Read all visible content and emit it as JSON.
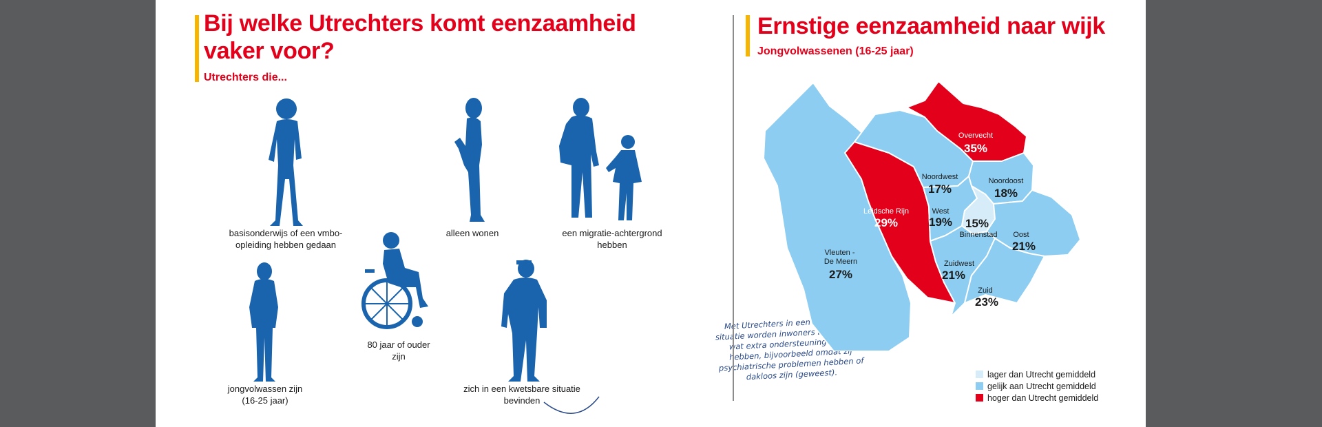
{
  "left": {
    "title": "Bij welke Utrechters komt eenzaamheid vaker voor?",
    "subtitle": "Utrechters die...",
    "groups": [
      {
        "icon": "walking-person-icon",
        "label": "basisonderwijs of een vmbo-opleiding hebben gedaan"
      },
      {
        "icon": "standing-woman-icon",
        "label": "alleen wonen"
      },
      {
        "icon": "mother-and-child-icon",
        "label": "een migratie-achtergrond hebben"
      },
      {
        "icon": "young-adult-icon",
        "label": "jongvolwassen zijn (16-25 jaar)"
      },
      {
        "icon": "wheelchair-user-icon",
        "label": "80 jaar of ouder zijn"
      },
      {
        "icon": "vulnerable-person-icon",
        "label": "zich in een kwetsbare situatie bevinden"
      }
    ],
    "note": "Met Utrechters in een kwetsbare situatie worden inwoners bedoeld die wat extra ondersteuning nodig hebben, bijvoorbeeld omdat zij psychiatrische problemen hebben of dakloos zijn (geweest)."
  },
  "right": {
    "title": "Ernstige eenzaamheid naar wijk",
    "subtitle": "Jongvolwassenen (16-25 jaar)",
    "districts": [
      {
        "name": "Overvecht",
        "value": "35%",
        "category": "hoger"
      },
      {
        "name": "Noordwest",
        "value": "17%",
        "category": "gelijk"
      },
      {
        "name": "Noordoost",
        "value": "18%",
        "category": "gelijk"
      },
      {
        "name": "Leidsche Rijn",
        "value": "29%",
        "category": "hoger"
      },
      {
        "name": "West",
        "value": "19%",
        "category": "gelijk"
      },
      {
        "name": "Binnenstad",
        "value": "15%",
        "category": "lager"
      },
      {
        "name": "Oost",
        "value": "21%",
        "category": "gelijk"
      },
      {
        "name": "Vleuten - De Meern",
        "value": "27%",
        "category": "gelijk"
      },
      {
        "name": "Zuidwest",
        "value": "21%",
        "category": "gelijk"
      },
      {
        "name": "Zuid",
        "value": "23%",
        "category": "gelijk"
      }
    ],
    "legend": [
      {
        "label": "lager dan Utrecht gemiddeld",
        "color": "#d6ecf8"
      },
      {
        "label": "gelijk aan Utrecht gemiddeld",
        "color": "#8ccdf1"
      },
      {
        "label": "hoger dan Utrecht gemiddeld",
        "color": "#e2001a"
      }
    ],
    "colors": {
      "lager": "#d6ecf8",
      "gelijk": "#8ccdf1",
      "hoger": "#e2001a",
      "figure": "#1a63ad"
    }
  }
}
